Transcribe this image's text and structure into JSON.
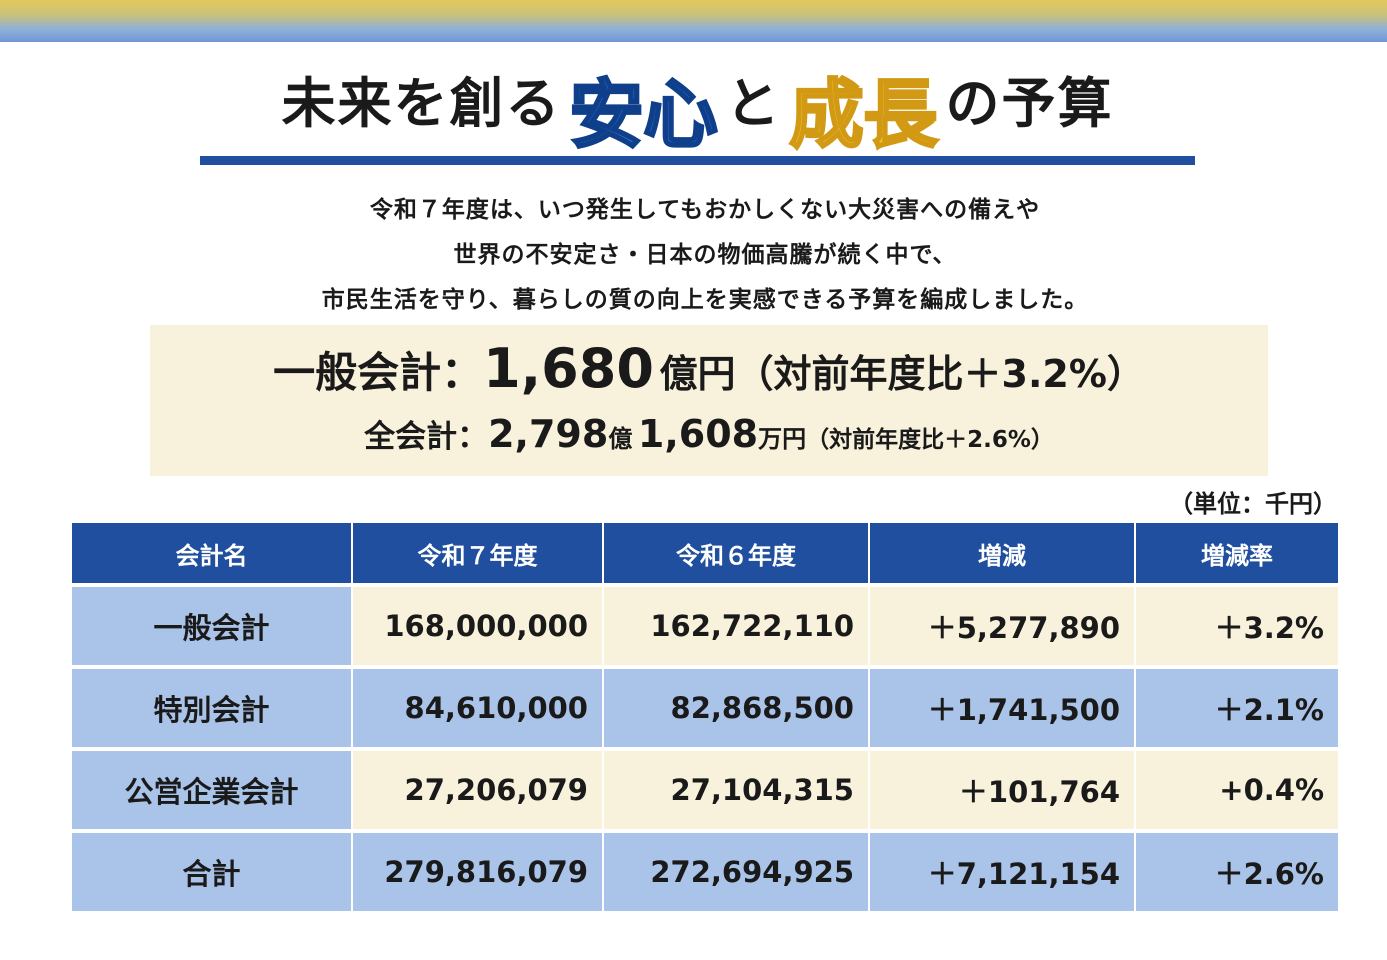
{
  "title": {
    "part1": "未来を創る",
    "highlight1": "安心",
    "part2": "と",
    "highlight2": "成長",
    "part3": "の予算"
  },
  "intro_lines": [
    "令和７年度は、いつ発生してもおかしくない大災害への備えや",
    "世界の不安定さ・日本の物価高騰が続く中で、",
    "市民生活を守り、暮らしの質の向上を実感できる予算を編成しました。"
  ],
  "summary": {
    "general_label": "一般会計：",
    "general_amount": "1,680",
    "general_unit": "億円",
    "general_ratio": "（対前年度比＋3.2%）",
    "total_label": "全会計：",
    "total_amount_oku": "2,798",
    "total_unit_oku": "億",
    "total_amount_man": "1,608",
    "total_unit_man": "万円",
    "total_ratio": "（対前年度比＋2.6%）"
  },
  "unit_note": "（単位：千円）",
  "table": {
    "headers": [
      "会計名",
      "令和７年度",
      "令和６年度",
      "増減",
      "増減率"
    ],
    "rows": [
      [
        "一般会計",
        "168,000,000",
        "162,722,110",
        "＋5,277,890",
        "＋3.2%"
      ],
      [
        "特別会計",
        "84,610,000",
        "82,868,500",
        "＋1,741,500",
        "＋2.1%"
      ],
      [
        "公営企業会計",
        "27,206,079",
        "27,104,315",
        "＋101,764",
        "+0.4%"
      ],
      [
        "合計",
        "279,816,079",
        "272,694,925",
        "＋7,121,154",
        "＋2.6%"
      ]
    ]
  },
  "colors": {
    "navy": "#1f4f9e",
    "light_blue": "#a9c3e9",
    "cream": "#f8f2dc",
    "gold": "#f2c12e",
    "blue_accent": "#2f6fc4"
  }
}
